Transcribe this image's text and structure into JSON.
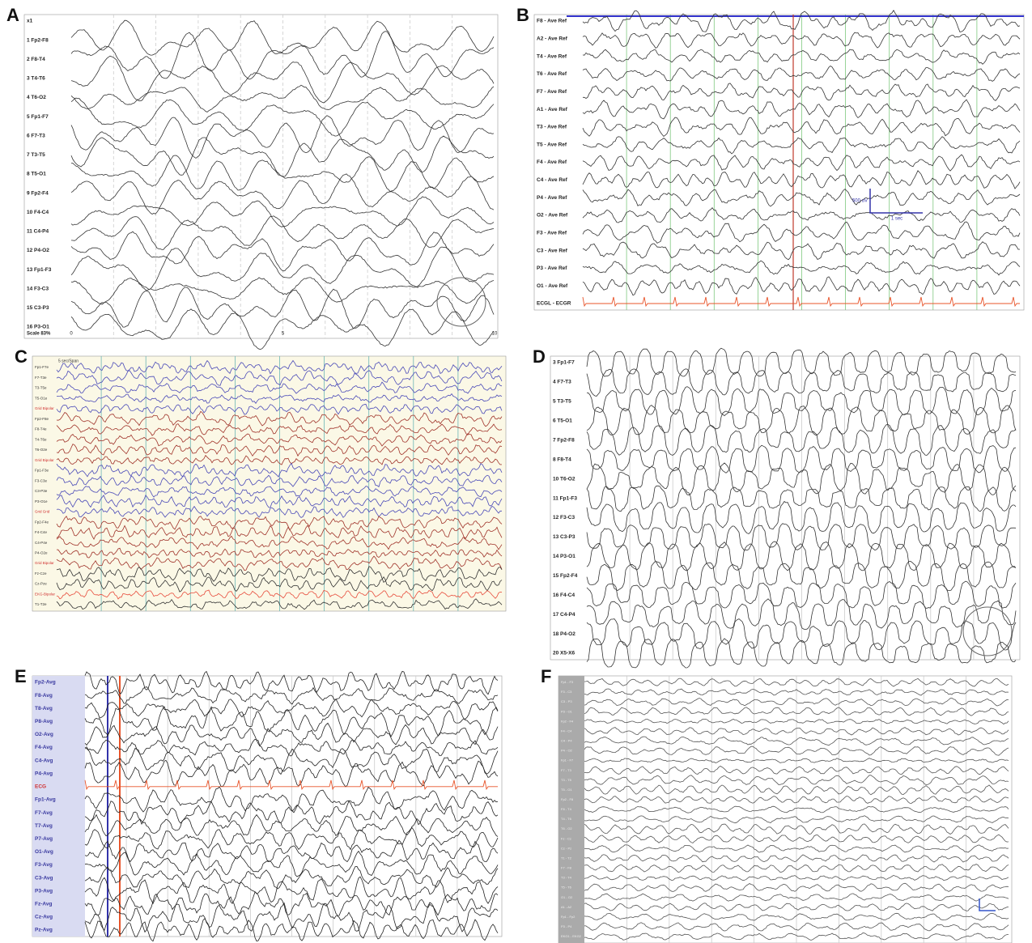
{
  "panels": [
    {
      "letter": "A",
      "channels": [
        "x1",
        "1 Fp2-F8",
        "2 F8-T4",
        "3 T4-T6",
        "4 T6-O2",
        "5 Fp1-F7",
        "6 F7-T3",
        "7 T3-T5",
        "8 T5-O1",
        "9 Fp2-F4",
        "10 F4-C4",
        "11 C4-P4",
        "12 P4-O2",
        "13 Fp1-F3",
        "14 F3-C3",
        "15 C3-P3",
        "16 P3-O1"
      ],
      "scale": "Scale 83%",
      "axis_labels": [
        "0",
        "5",
        "10"
      ]
    },
    {
      "letter": "B",
      "channels": [
        "F8 - Ave Ref",
        "A2 - Ave Ref",
        "T4 - Ave Ref",
        "T6 - Ave Ref",
        "F7 - Ave Ref",
        "A1 - Ave Ref",
        "T3 - Ave Ref",
        "T5 - Ave Ref",
        "F4 - Ave Ref",
        "C4 - Ave Ref",
        "P4 - Ave Ref",
        "O2 - Ave Ref",
        "F3 - Ave Ref",
        "C3 - Ave Ref",
        "P3 - Ave Ref",
        "O1 - Ave Ref",
        "ECGL - ECGR"
      ],
      "amplitude_scale": "500 uV",
      "time_scale": "1 sec"
    },
    {
      "letter": "C",
      "header": "5 sec/Span",
      "channels": [
        "Fp1-F7e",
        "F7-T3e",
        "T3-T5e",
        "T5-O1e",
        "Grid Bipolar",
        "Fp2-F8e",
        "F8-T4e",
        "T4-T6e",
        "T6-O2e",
        "Grid Bipolar",
        "Fp1-F3e",
        "F3-C3e",
        "C3-P3e",
        "P3-O1e",
        "Grid Grid",
        "Fp2-F4e",
        "F4-C4e",
        "C4-P4e",
        "P4-O2e",
        "Grid Bipolar",
        "Fz-Cze",
        "Cz-Pze",
        "EKG-Bipolar",
        "T1-T2e"
      ]
    },
    {
      "letter": "D",
      "channels": [
        "3 Fp1-F7",
        "4 F7-T3",
        "5 T3-T5",
        "6 T5-O1",
        "7 Fp2-F8",
        "8 F8-T4",
        "10 T6-O2",
        "11 Fp1-F3",
        "12 F3-C3",
        "13 C3-P3",
        "14 P3-O1",
        "15 Fp2-F4",
        "16 F4-C4",
        "17 C4-P4",
        "18 P4-O2",
        "20 X5-X6"
      ]
    },
    {
      "letter": "E",
      "channels": [
        "Fp2-Avg",
        "F8-Avg",
        "T8-Avg",
        "P8-Avg",
        "O2-Avg",
        "F4-Avg",
        "C4-Avg",
        "P4-Avg",
        "ECG",
        "Fp1-Avg",
        "F7-Avg",
        "T7-Avg",
        "P7-Avg",
        "O1-Avg",
        "F3-Avg",
        "C3-Avg",
        "P3-Avg",
        "Fz-Avg",
        "Cz-Avg",
        "Pz-Avg"
      ]
    },
    {
      "letter": "F",
      "channels": [
        "Fp1 - F3",
        "F3 - C3",
        "C3 - P3",
        "P3 - O1",
        "Fp2 - F4",
        "F4 - C4",
        "C4 - P4",
        "P4 - O2",
        "Fp1 - F7",
        "F7 - T3",
        "T3 - T5",
        "T5 - O1",
        "Fp2 - F8",
        "F8 - T4",
        "T4 - T6",
        "T6 - O2",
        "Fz - Cz",
        "Cz - Pz",
        "T1 - T2",
        "F7 - F8",
        "T3 - T4",
        "T5 - T6",
        "O1 - O2",
        "A1 - A2",
        "Fp1 - Fp2",
        "P3 - P4",
        "EKG1 - EKG2"
      ]
    }
  ]
}
